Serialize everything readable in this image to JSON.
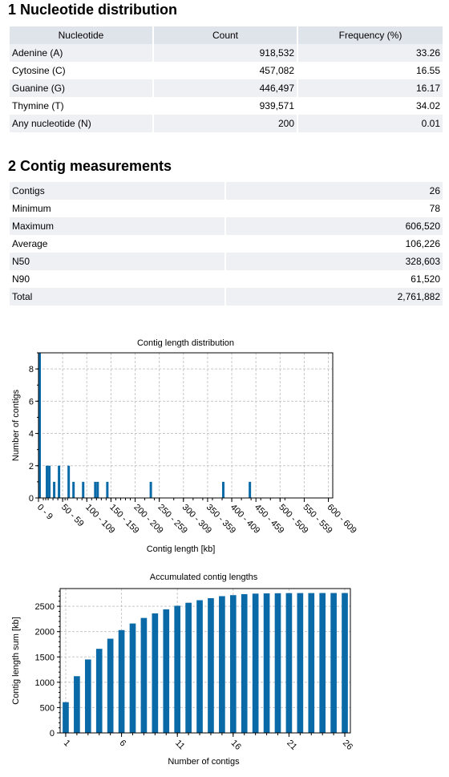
{
  "sections": {
    "nucleotide_title": "1 Nucleotide distribution",
    "contig_title": "2 Contig measurements"
  },
  "nucleotide_table": {
    "headers": [
      "Nucleotide",
      "Count",
      "Frequency (%)"
    ],
    "rows": [
      [
        "Adenine (A)",
        "918,532",
        "33.26"
      ],
      [
        "Cytosine (C)",
        "457,082",
        "16.55"
      ],
      [
        "Guanine (G)",
        "446,497",
        "16.17"
      ],
      [
        "Thymine (T)",
        "939,571",
        "34.02"
      ],
      [
        "Any nucleotide (N)",
        "200",
        "0.01"
      ]
    ]
  },
  "contig_table": {
    "rows": [
      [
        "Contigs",
        "26"
      ],
      [
        "Minimum",
        "78"
      ],
      [
        "Maximum",
        "606,520"
      ],
      [
        "Average",
        "106,226"
      ],
      [
        "N50",
        "328,603"
      ],
      [
        "N90",
        "61,520"
      ],
      [
        "Total",
        "2,761,882"
      ]
    ]
  },
  "colors": {
    "bar": "#0a6aa8",
    "grid": "#c8c8c8",
    "header": "#dfe3ea",
    "row_alt": "#eef0f4"
  },
  "chart_data": [
    {
      "type": "bar",
      "title": "Contig length distribution",
      "xlabel": "Contig length [kb]",
      "ylabel": "Number of contigs",
      "ylim": [
        0,
        9
      ],
      "xlim": [
        0,
        609
      ],
      "yticks": [
        0,
        2,
        4,
        6,
        8
      ],
      "x_tick_labels": [
        "0 - 9",
        "50 - 59",
        "100 - 109",
        "150 - 159",
        "200 - 209",
        "250 - 259",
        "300 - 309",
        "350 - 359",
        "400 - 409",
        "450 - 459",
        "500 - 509",
        "550 - 559",
        "600 - 609"
      ],
      "x_tick_starts": [
        0,
        50,
        100,
        150,
        200,
        250,
        300,
        350,
        400,
        450,
        500,
        550,
        600
      ],
      "bin_starts": [
        0,
        10,
        15,
        20,
        30,
        40,
        50,
        55,
        60,
        80,
        90,
        100,
        110,
        120,
        130,
        140,
        150,
        160,
        170,
        180,
        190,
        200,
        220,
        240,
        250,
        280,
        300,
        320,
        340,
        360,
        380,
        400,
        420,
        440,
        460,
        480,
        500,
        510,
        600
      ],
      "bins": [
        {
          "x": 0,
          "count": 9
        },
        {
          "x": 15,
          "count": 2
        },
        {
          "x": 20,
          "count": 2
        },
        {
          "x": 30,
          "count": 1
        },
        {
          "x": 40,
          "count": 2
        },
        {
          "x": 60,
          "count": 2
        },
        {
          "x": 70,
          "count": 1
        },
        {
          "x": 90,
          "count": 1
        },
        {
          "x": 115,
          "count": 1
        },
        {
          "x": 120,
          "count": 1
        },
        {
          "x": 140,
          "count": 1
        },
        {
          "x": 230,
          "count": 1
        },
        {
          "x": 380,
          "count": 1
        },
        {
          "x": 435,
          "count": 1
        }
      ],
      "grid": true
    },
    {
      "type": "bar",
      "title": "Accumulated contig lengths",
      "xlabel": "Number of contigs",
      "ylabel": "Contig length sum [kb]",
      "ylim": [
        0,
        2850
      ],
      "yticks": [
        0,
        500,
        1000,
        1500,
        2000,
        2500
      ],
      "xticks": [
        1,
        6,
        11,
        16,
        21,
        26
      ],
      "x": [
        1,
        2,
        3,
        4,
        5,
        6,
        7,
        8,
        9,
        10,
        11,
        12,
        13,
        14,
        15,
        16,
        17,
        18,
        19,
        20,
        21,
        22,
        23,
        24,
        25,
        26
      ],
      "values": [
        607,
        1120,
        1450,
        1660,
        1860,
        2030,
        2160,
        2270,
        2360,
        2440,
        2510,
        2570,
        2620,
        2660,
        2700,
        2720,
        2740,
        2750,
        2755,
        2758,
        2760,
        2761,
        2761,
        2762,
        2762,
        2762
      ],
      "grid": true
    }
  ]
}
